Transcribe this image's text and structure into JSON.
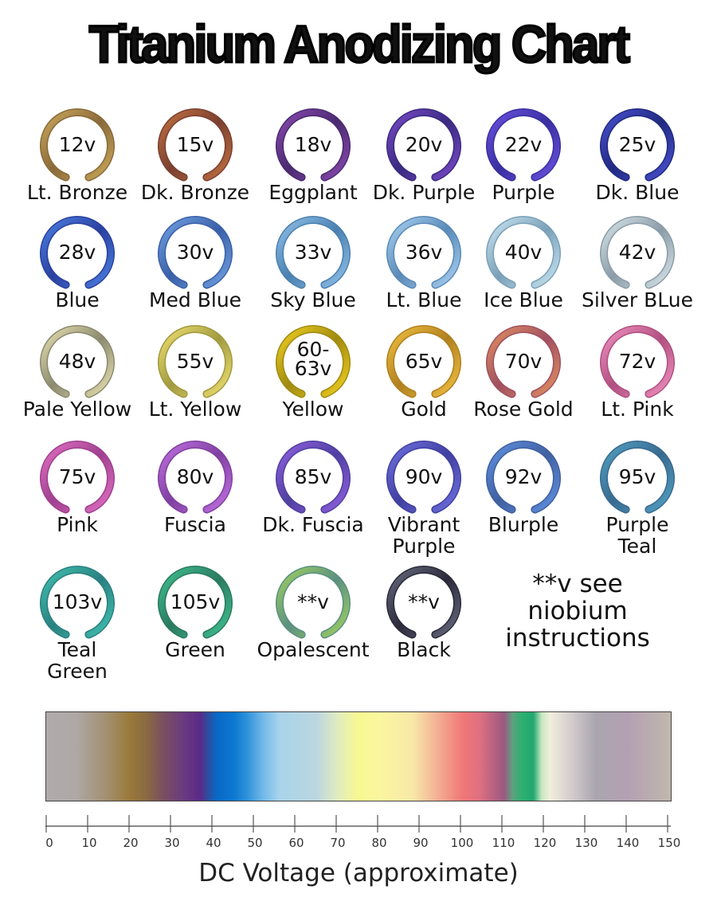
{
  "title": "Titanium Anodizing Chart",
  "colors": [
    {
      "voltage": "12v",
      "name": "Lt. Bronze",
      "c1": "#c9a85a",
      "c2": "#8a6a3a"
    },
    {
      "voltage": "15v",
      "name": "Dk. Bronze",
      "c1": "#c07040",
      "c2": "#7a4030"
    },
    {
      "voltage": "18v",
      "name": "Eggplant",
      "c1": "#8a4ab0",
      "c2": "#4a2a70"
    },
    {
      "voltage": "20v",
      "name": "Dk. Purple",
      "c1": "#7a4ac8",
      "c2": "#3a2a80"
    },
    {
      "voltage": "22v",
      "name": "Purple",
      "c1": "#6a50e0",
      "c2": "#3a30a0"
    },
    {
      "voltage": "25v",
      "name": "Dk. Blue",
      "c1": "#4a50d0",
      "c2": "#202a80"
    },
    {
      "voltage": "28v",
      "name": "Blue",
      "c1": "#4a80e0",
      "c2": "#2a40a0"
    },
    {
      "voltage": "30v",
      "name": "Med Blue",
      "c1": "#70a0e0",
      "c2": "#3a60a8"
    },
    {
      "voltage": "33v",
      "name": "Sky Blue",
      "c1": "#90c0e8",
      "c2": "#4a80b0"
    },
    {
      "voltage": "36v",
      "name": "Lt. Blue",
      "c1": "#a8d0f0",
      "c2": "#5a8ab8"
    },
    {
      "voltage": "40v",
      "name": "Ice Blue",
      "c1": "#c8e4f0",
      "c2": "#7aa0b8"
    },
    {
      "voltage": "42v",
      "name": "Silver BLue",
      "c1": "#d8e4e8",
      "c2": "#8a9ca8"
    },
    {
      "voltage": "48v",
      "name": "Pale Yellow",
      "c1": "#e8e0b0",
      "c2": "#8a8a70"
    },
    {
      "voltage": "55v",
      "name": "Lt. Yellow",
      "c1": "#f0e070",
      "c2": "#a09a40"
    },
    {
      "voltage": "60-\n63v",
      "name": "Yellow",
      "c1": "#f0d020",
      "c2": "#a08a10"
    },
    {
      "voltage": "65v",
      "name": "Gold",
      "c1": "#f0c040",
      "c2": "#b08020"
    },
    {
      "voltage": "70v",
      "name": "Rose Gold",
      "c1": "#e09060",
      "c2": "#a05060"
    },
    {
      "voltage": "72v",
      "name": "Lt. Pink",
      "c1": "#f090c0",
      "c2": "#b05080"
    },
    {
      "voltage": "75v",
      "name": "Pink",
      "c1": "#e070c0",
      "c2": "#a04090"
    },
    {
      "voltage": "80v",
      "name": "Fuscia",
      "c1": "#c070e0",
      "c2": "#8040a0"
    },
    {
      "voltage": "85v",
      "name": "Dk. Fuscia",
      "c1": "#9060e0",
      "c2": "#5040a0"
    },
    {
      "voltage": "90v",
      "name": "Vibrant\nPurple",
      "c1": "#7070e0",
      "c2": "#4040a0"
    },
    {
      "voltage": "92v",
      "name": "Blurple",
      "c1": "#6090e0",
      "c2": "#4060a0"
    },
    {
      "voltage": "95v",
      "name": "Purple\nTeal",
      "c1": "#50a0c0",
      "c2": "#3a6a90"
    },
    {
      "voltage": "103v",
      "name": "Teal\nGreen",
      "c1": "#40c0b0",
      "c2": "#2a8080"
    },
    {
      "voltage": "105v",
      "name": "Green",
      "c1": "#40c090",
      "c2": "#2a7a60"
    },
    {
      "voltage": "**v",
      "name": "Opalescent",
      "c1": "#a0d060",
      "c2": "#5a9080"
    },
    {
      "voltage": "**v",
      "name": "Black",
      "c1": "#6a6a80",
      "c2": "#2a2a3a"
    }
  ],
  "note": "**v see niobium instructions",
  "spectrum": [
    {
      "v": 0,
      "color": "#b0aaab"
    },
    {
      "v": 7,
      "color": "#aea8a6"
    },
    {
      "v": 14,
      "color": "#a49175"
    },
    {
      "v": 20,
      "color": "#9a7a3a"
    },
    {
      "v": 24,
      "color": "#8a6a40"
    },
    {
      "v": 28,
      "color": "#7a5060"
    },
    {
      "v": 33,
      "color": "#6a3a80"
    },
    {
      "v": 37,
      "color": "#5a2a88"
    },
    {
      "v": 39,
      "color": "#2a50a0"
    },
    {
      "v": 41,
      "color": "#0a68c8"
    },
    {
      "v": 45,
      "color": "#0c78d0"
    },
    {
      "v": 48,
      "color": "#2a90d8"
    },
    {
      "v": 52,
      "color": "#70b8e8"
    },
    {
      "v": 56,
      "color": "#a8d4ea"
    },
    {
      "v": 65,
      "color": "#bcd6e0"
    },
    {
      "v": 70,
      "color": "#e0ecc0"
    },
    {
      "v": 75,
      "color": "#f8f890"
    },
    {
      "v": 80,
      "color": "#faf6a0"
    },
    {
      "v": 88,
      "color": "#f8e8a8"
    },
    {
      "v": 93,
      "color": "#f4b898"
    },
    {
      "v": 100,
      "color": "#f07878"
    },
    {
      "v": 104,
      "color": "#e07080"
    },
    {
      "v": 108,
      "color": "#b06080"
    },
    {
      "v": 110,
      "color": "#9a5a80"
    },
    {
      "v": 112,
      "color": "#60a080"
    },
    {
      "v": 114,
      "color": "#30b070"
    },
    {
      "v": 117,
      "color": "#20a870"
    },
    {
      "v": 119,
      "color": "#c8e8c0"
    },
    {
      "v": 121,
      "color": "#f0eedc"
    },
    {
      "v": 126,
      "color": "#d4ccce"
    },
    {
      "v": 132,
      "color": "#aaa6ae"
    },
    {
      "v": 140,
      "color": "#b4a0b4"
    },
    {
      "v": 150,
      "color": "#c0b8ac"
    }
  ],
  "axis": {
    "min": 0,
    "max": 150,
    "ticks": [
      "0",
      "10",
      "20",
      "30",
      "40",
      "50",
      "60",
      "70",
      "80",
      "90",
      "100",
      "110",
      "120",
      "130",
      "140",
      "150"
    ],
    "caption": "DC Voltage (approximate)"
  }
}
